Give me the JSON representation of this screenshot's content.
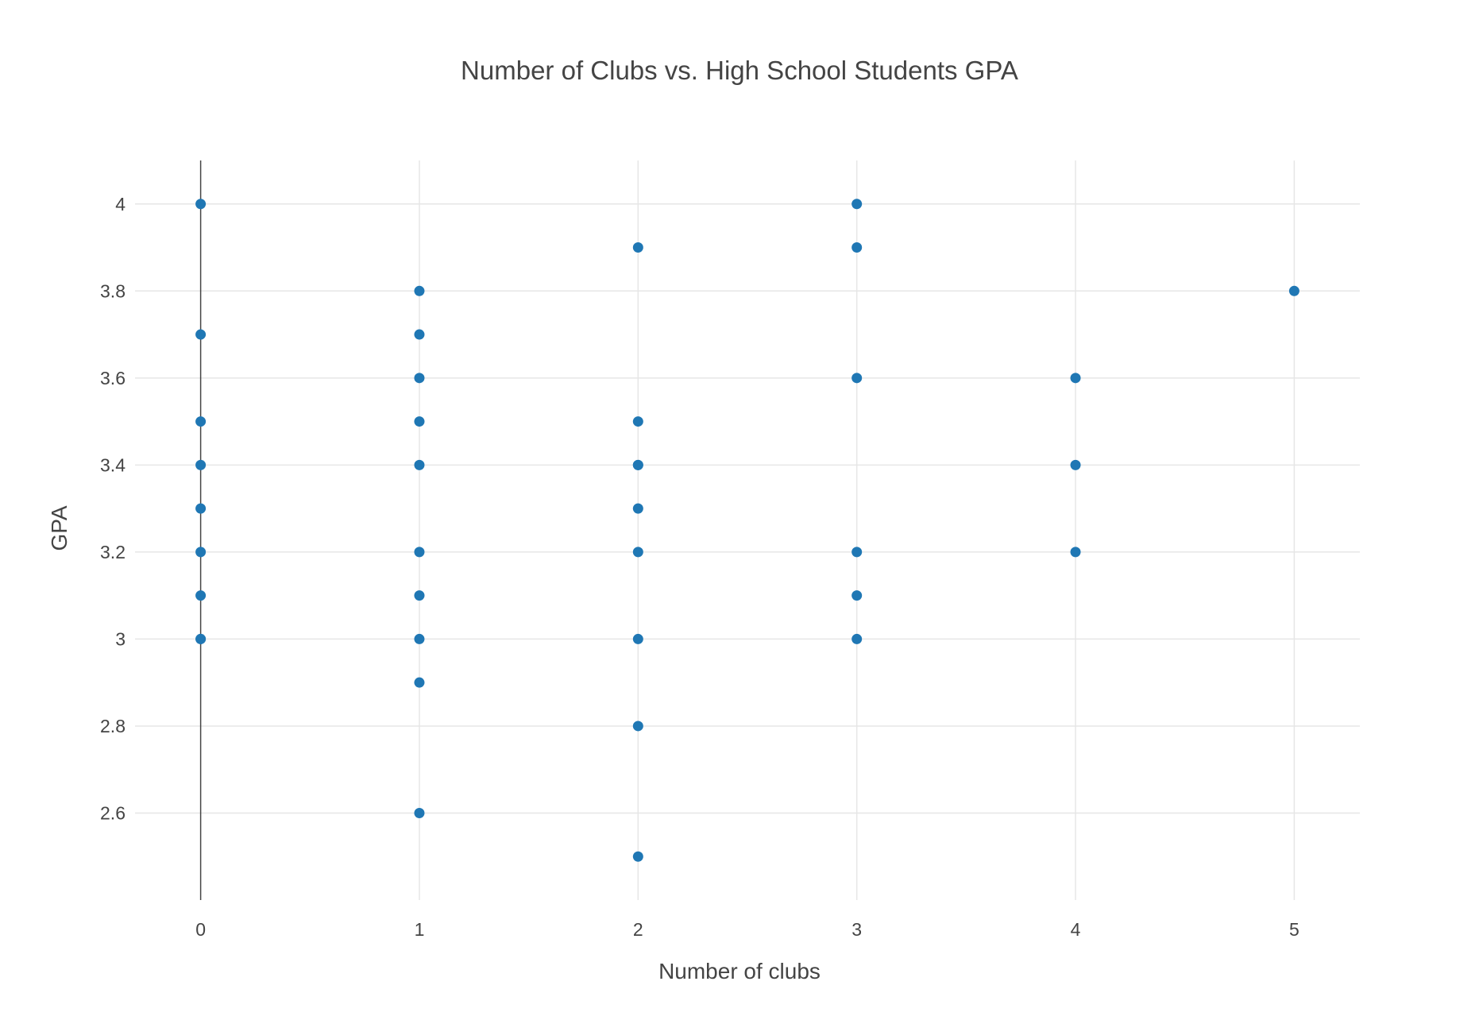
{
  "chart_data": {
    "type": "scatter",
    "title": "Number of Clubs vs. High School Students GPA",
    "xlabel": "Number of clubs",
    "ylabel": "GPA",
    "xlim": [
      -0.3,
      5.3
    ],
    "ylim": [
      2.4,
      4.1
    ],
    "x_ticks": [
      "0",
      "1",
      "2",
      "3",
      "4",
      "5"
    ],
    "y_ticks": [
      "2.6",
      "2.8",
      "3",
      "3.2",
      "3.4",
      "3.6",
      "3.8",
      "4"
    ],
    "x_tick_values": [
      0,
      1,
      2,
      3,
      4,
      5
    ],
    "y_tick_values": [
      2.6,
      2.8,
      3.0,
      3.2,
      3.4,
      3.6,
      3.8,
      4.0
    ],
    "grid": true,
    "marker_color": "#1f77b4",
    "gridline_color": "#e6e6e6",
    "zeroline_color": "#444444",
    "series": [
      {
        "x": [
          0,
          0,
          0,
          0,
          0,
          0,
          0,
          0,
          0,
          1,
          1,
          1,
          1,
          1,
          1,
          1,
          1,
          1,
          1,
          2,
          2,
          2,
          2,
          2,
          2,
          2,
          2,
          2,
          3,
          3,
          3,
          3,
          3,
          3,
          4,
          4,
          4,
          5
        ],
        "y": [
          4.0,
          3.7,
          3.5,
          3.4,
          3.3,
          3.2,
          3.1,
          3.0,
          3.0,
          3.8,
          3.7,
          3.6,
          3.5,
          3.4,
          3.2,
          3.1,
          3.0,
          2.9,
          2.6,
          3.9,
          3.5,
          3.4,
          3.3,
          3.2,
          3.0,
          2.8,
          2.5,
          3.4,
          4.0,
          3.9,
          3.6,
          3.2,
          3.1,
          3.0,
          3.6,
          3.4,
          3.2,
          3.8
        ]
      }
    ]
  }
}
